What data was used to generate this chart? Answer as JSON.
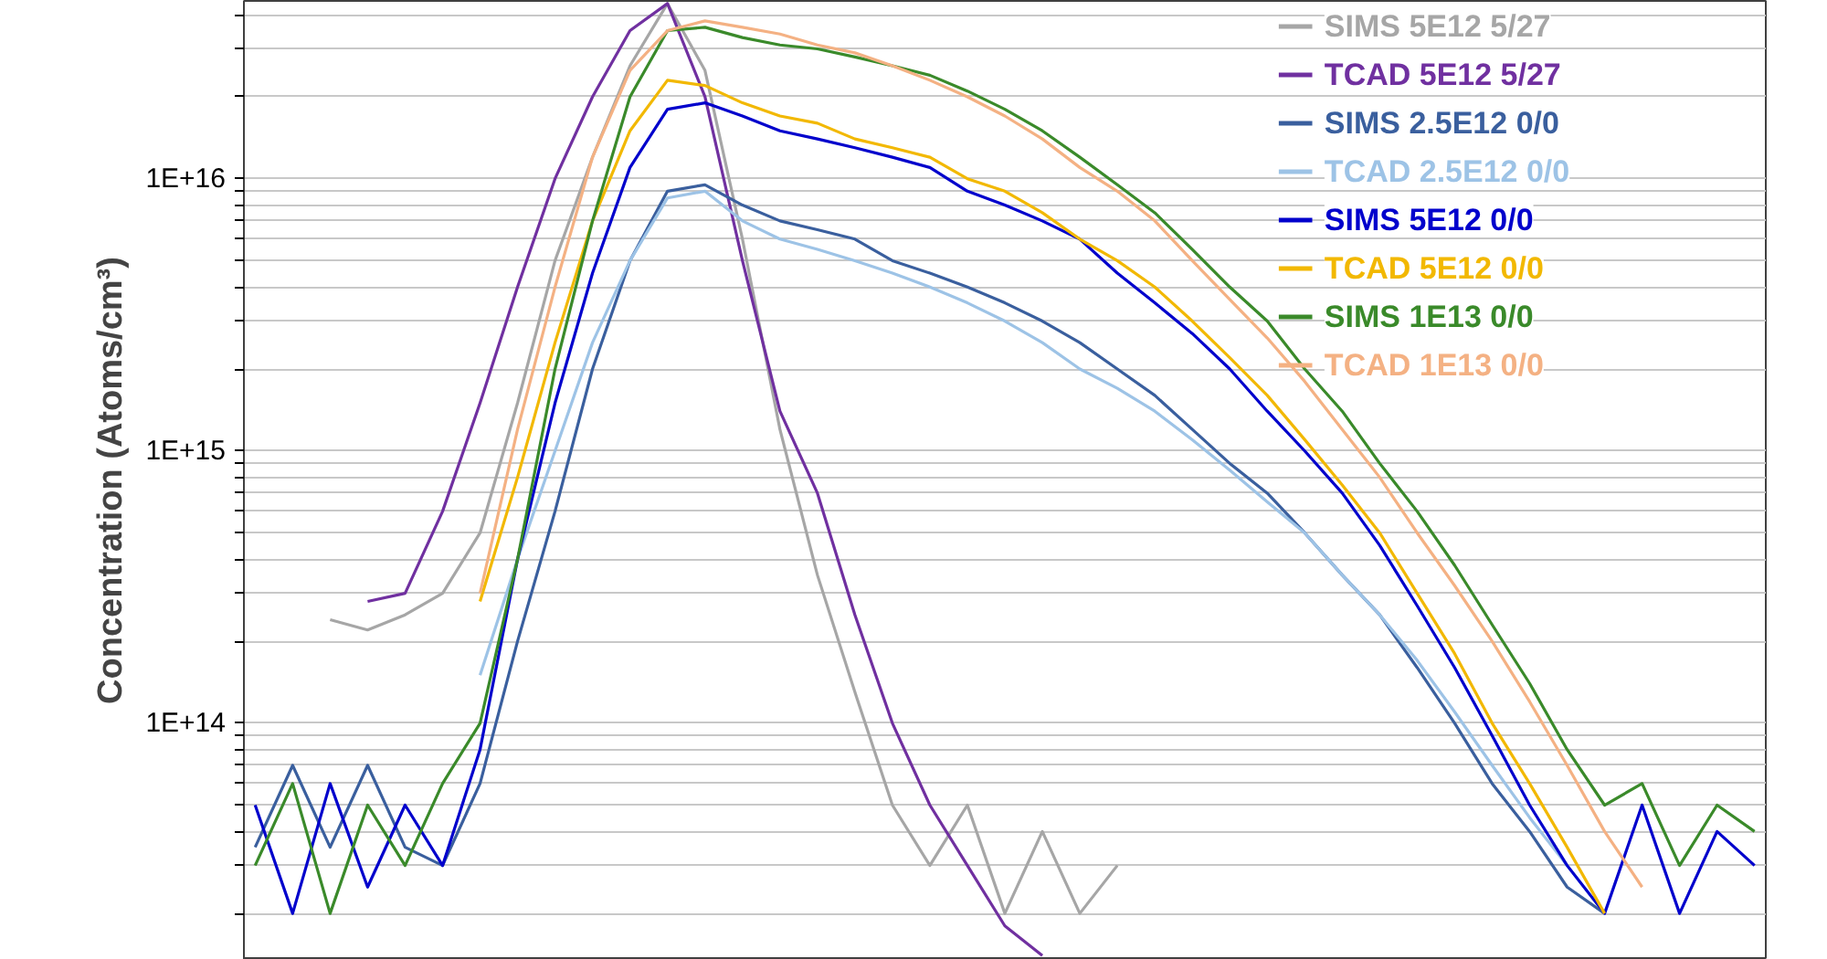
{
  "chart_data": {
    "type": "line",
    "ylabel": "Concentration (Atoms/cm³)",
    "log": "y",
    "grid": "y",
    "legend": "top right",
    "tick_labels": "y",
    "marker": "none",
    "line_style": "solid",
    "categories": [
      null,
      null,
      null,
      null,
      null,
      null,
      null,
      null,
      null,
      null,
      null,
      null,
      null,
      null,
      null,
      null,
      null,
      null,
      null,
      null,
      null,
      null,
      null,
      null,
      null,
      null,
      null,
      null,
      null,
      null,
      null,
      null,
      null,
      null,
      null,
      null,
      null,
      null,
      null,
      null,
      null
    ],
    "ylim": [
      13500000000000.0,
      4.5e+16
    ],
    "yticks": [
      {
        "value": 20000000000000.0,
        "label": null
      },
      {
        "value": 30000000000000.0,
        "label": null
      },
      {
        "value": 40000000000000.0,
        "label": null
      },
      {
        "value": 50000000000000.0,
        "label": null
      },
      {
        "value": 60000000000000.0,
        "label": null
      },
      {
        "value": 70000000000000.0,
        "label": null
      },
      {
        "value": 80000000000000.0,
        "label": null
      },
      {
        "value": 90000000000000.0,
        "label": null
      },
      {
        "value": 100000000000000.0,
        "label": "1E+14"
      },
      {
        "value": 200000000000000.0,
        "label": null
      },
      {
        "value": 300000000000000.0,
        "label": null
      },
      {
        "value": 400000000000000.0,
        "label": null
      },
      {
        "value": 500000000000000.0,
        "label": null
      },
      {
        "value": 600000000000000.0,
        "label": null
      },
      {
        "value": 700000000000000.0,
        "label": null
      },
      {
        "value": 800000000000000.0,
        "label": null
      },
      {
        "value": 900000000000000.0,
        "label": null
      },
      {
        "value": 1000000000000000.0,
        "label": "1E+15"
      },
      {
        "value": 2000000000000000.0,
        "label": null
      },
      {
        "value": 3000000000000000.0,
        "label": null
      },
      {
        "value": 4000000000000000.0,
        "label": null
      },
      {
        "value": 5000000000000000.0,
        "label": null
      },
      {
        "value": 6000000000000000.0,
        "label": null
      },
      {
        "value": 7000000000000000.0,
        "label": null
      },
      {
        "value": 8000000000000000.0,
        "label": null
      },
      {
        "value": 9000000000000000.0,
        "label": null
      },
      {
        "value": 1e+16,
        "label": "1E+16"
      },
      {
        "value": 2e+16,
        "label": null
      },
      {
        "value": 3e+16,
        "label": null
      },
      {
        "value": 4e+16,
        "label": null
      }
    ],
    "series": [
      {
        "name": "SIMS 5E12 5/27",
        "color": "#a6a6a6",
        "values": [
          null,
          null,
          240000000000000.0,
          220000000000000.0,
          250000000000000.0,
          300000000000000.0,
          500000000000000.0,
          1500000000000000.0,
          5000000000000000.0,
          1.2e+16,
          2.6e+16,
          4.4e+16,
          2.5e+16,
          6000000000000000.0,
          1200000000000000.0,
          350000000000000.0,
          130000000000000.0,
          50000000000000.0,
          30000000000000.0,
          50000000000000.0,
          20000000000000.0,
          40000000000000.0,
          20000000000000.0,
          30000000000000.0,
          null,
          null,
          null,
          null,
          null,
          null,
          null,
          null,
          null,
          null,
          null,
          null,
          null,
          null,
          null,
          null,
          null
        ]
      },
      {
        "name": "TCAD 5E12 5/27",
        "color": "#7030a0",
        "values": [
          null,
          null,
          null,
          280000000000000.0,
          300000000000000.0,
          600000000000000.0,
          1500000000000000.0,
          4000000000000000.0,
          1e+16,
          2e+16,
          3.5e+16,
          4.4e+16,
          2e+16,
          5000000000000000.0,
          1400000000000000.0,
          700000000000000.0,
          250000000000000.0,
          100000000000000.0,
          50000000000000.0,
          30000000000000.0,
          18000000000000.0,
          14000000000000.0,
          null,
          null,
          null,
          null,
          null,
          null,
          null,
          null,
          null,
          null,
          null,
          null,
          null,
          null,
          null,
          null,
          null,
          null,
          null
        ]
      },
      {
        "name": "SIMS 2.5E12 0/0",
        "color": "#3a5f9e",
        "values": [
          35000000000000.0,
          70000000000000.0,
          35000000000000.0,
          70000000000000.0,
          35000000000000.0,
          30000000000000.0,
          60000000000000.0,
          200000000000000.0,
          600000000000000.0,
          2000000000000000.0,
          5000000000000000.0,
          9000000000000000.0,
          9500000000000000.0,
          8000000000000000.0,
          7000000000000000.0,
          6500000000000000.0,
          6000000000000000.0,
          5000000000000000.0,
          4500000000000000.0,
          4000000000000000.0,
          3500000000000000.0,
          3000000000000000.0,
          2500000000000000.0,
          2000000000000000.0,
          1600000000000000.0,
          1200000000000000.0,
          900000000000000.0,
          700000000000000.0,
          500000000000000.0,
          350000000000000.0,
          250000000000000.0,
          160000000000000.0,
          100000000000000.0,
          60000000000000.0,
          40000000000000.0,
          25000000000000.0,
          20000000000000.0,
          null,
          null,
          null,
          null
        ]
      },
      {
        "name": "TCAD 2.5E12 0/0",
        "color": "#9dc3e6",
        "values": [
          null,
          null,
          null,
          null,
          null,
          null,
          150000000000000.0,
          400000000000000.0,
          1000000000000000.0,
          2500000000000000.0,
          5000000000000000.0,
          8500000000000000.0,
          9000000000000000.0,
          7000000000000000.0,
          6000000000000000.0,
          5500000000000000.0,
          5000000000000000.0,
          4500000000000000.0,
          4000000000000000.0,
          3500000000000000.0,
          3000000000000000.0,
          2500000000000000.0,
          2000000000000000.0,
          1700000000000000.0,
          1400000000000000.0,
          1100000000000000.0,
          850000000000000.0,
          650000000000000.0,
          500000000000000.0,
          350000000000000.0,
          250000000000000.0,
          170000000000000.0,
          110000000000000.0,
          70000000000000.0,
          45000000000000.0,
          30000000000000.0,
          20000000000000.0,
          null,
          null,
          null,
          null
        ]
      },
      {
        "name": "SIMS 5E12 0/0",
        "color": "#0000cc",
        "values": [
          50000000000000.0,
          20000000000000.0,
          60000000000000.0,
          25000000000000.0,
          50000000000000.0,
          30000000000000.0,
          80000000000000.0,
          400000000000000.0,
          1500000000000000.0,
          4500000000000000.0,
          1.1e+16,
          1.8e+16,
          1.9e+16,
          1.7e+16,
          1.5e+16,
          1.4e+16,
          1.3e+16,
          1.2e+16,
          1.1e+16,
          9000000000000000.0,
          8000000000000000.0,
          7000000000000000.0,
          6000000000000000.0,
          4500000000000000.0,
          3500000000000000.0,
          2700000000000000.0,
          2000000000000000.0,
          1400000000000000.0,
          1000000000000000.0,
          700000000000000.0,
          450000000000000.0,
          270000000000000.0,
          160000000000000.0,
          90000000000000.0,
          50000000000000.0,
          30000000000000.0,
          20000000000000.0,
          50000000000000.0,
          20000000000000.0,
          40000000000000.0,
          30000000000000.0
        ]
      },
      {
        "name": "TCAD 5E12 0/0",
        "color": "#f2b800",
        "values": [
          null,
          null,
          null,
          null,
          null,
          null,
          280000000000000.0,
          800000000000000.0,
          2500000000000000.0,
          7000000000000000.0,
          1.5e+16,
          2.3e+16,
          2.2e+16,
          1.9e+16,
          1.7e+16,
          1.6e+16,
          1.4e+16,
          1.3e+16,
          1.2e+16,
          1e+16,
          9000000000000000.0,
          7500000000000000.0,
          6000000000000000.0,
          5000000000000000.0,
          4000000000000000.0,
          3000000000000000.0,
          2200000000000000.0,
          1600000000000000.0,
          1100000000000000.0,
          750000000000000.0,
          500000000000000.0,
          300000000000000.0,
          180000000000000.0,
          100000000000000.0,
          60000000000000.0,
          35000000000000.0,
          20000000000000.0,
          null,
          null,
          null,
          null
        ]
      },
      {
        "name": "SIMS 1E13 0/0",
        "color": "#3a8a2a",
        "values": [
          30000000000000.0,
          60000000000000.0,
          20000000000000.0,
          50000000000000.0,
          30000000000000.0,
          60000000000000.0,
          100000000000000.0,
          400000000000000.0,
          2000000000000000.0,
          7000000000000000.0,
          2e+16,
          3.5e+16,
          3.6e+16,
          3.3e+16,
          3.1e+16,
          3e+16,
          2.8e+16,
          2.6e+16,
          2.4e+16,
          2.1e+16,
          1.8e+16,
          1.5e+16,
          1.2e+16,
          9500000000000000.0,
          7500000000000000.0,
          5500000000000000.0,
          4000000000000000.0,
          3000000000000000.0,
          2000000000000000.0,
          1400000000000000.0,
          900000000000000.0,
          600000000000000.0,
          380000000000000.0,
          230000000000000.0,
          140000000000000.0,
          80000000000000.0,
          50000000000000.0,
          60000000000000.0,
          30000000000000.0,
          50000000000000.0,
          40000000000000.0
        ]
      },
      {
        "name": "TCAD 1E13 0/0",
        "color": "#f4b183",
        "values": [
          null,
          null,
          null,
          null,
          null,
          null,
          300000000000000.0,
          1200000000000000.0,
          4000000000000000.0,
          1.2e+16,
          2.5e+16,
          3.5e+16,
          3.8e+16,
          3.6e+16,
          3.4e+16,
          3.1e+16,
          2.9e+16,
          2.6e+16,
          2.3e+16,
          2e+16,
          1.7e+16,
          1.4e+16,
          1.1e+16,
          9000000000000000.0,
          7000000000000000.0,
          5000000000000000.0,
          3600000000000000.0,
          2600000000000000.0,
          1800000000000000.0,
          1200000000000000.0,
          800000000000000.0,
          500000000000000.0,
          320000000000000.0,
          200000000000000.0,
          120000000000000.0,
          70000000000000.0,
          40000000000000.0,
          25000000000000.0,
          null,
          null,
          null
        ]
      }
    ]
  }
}
